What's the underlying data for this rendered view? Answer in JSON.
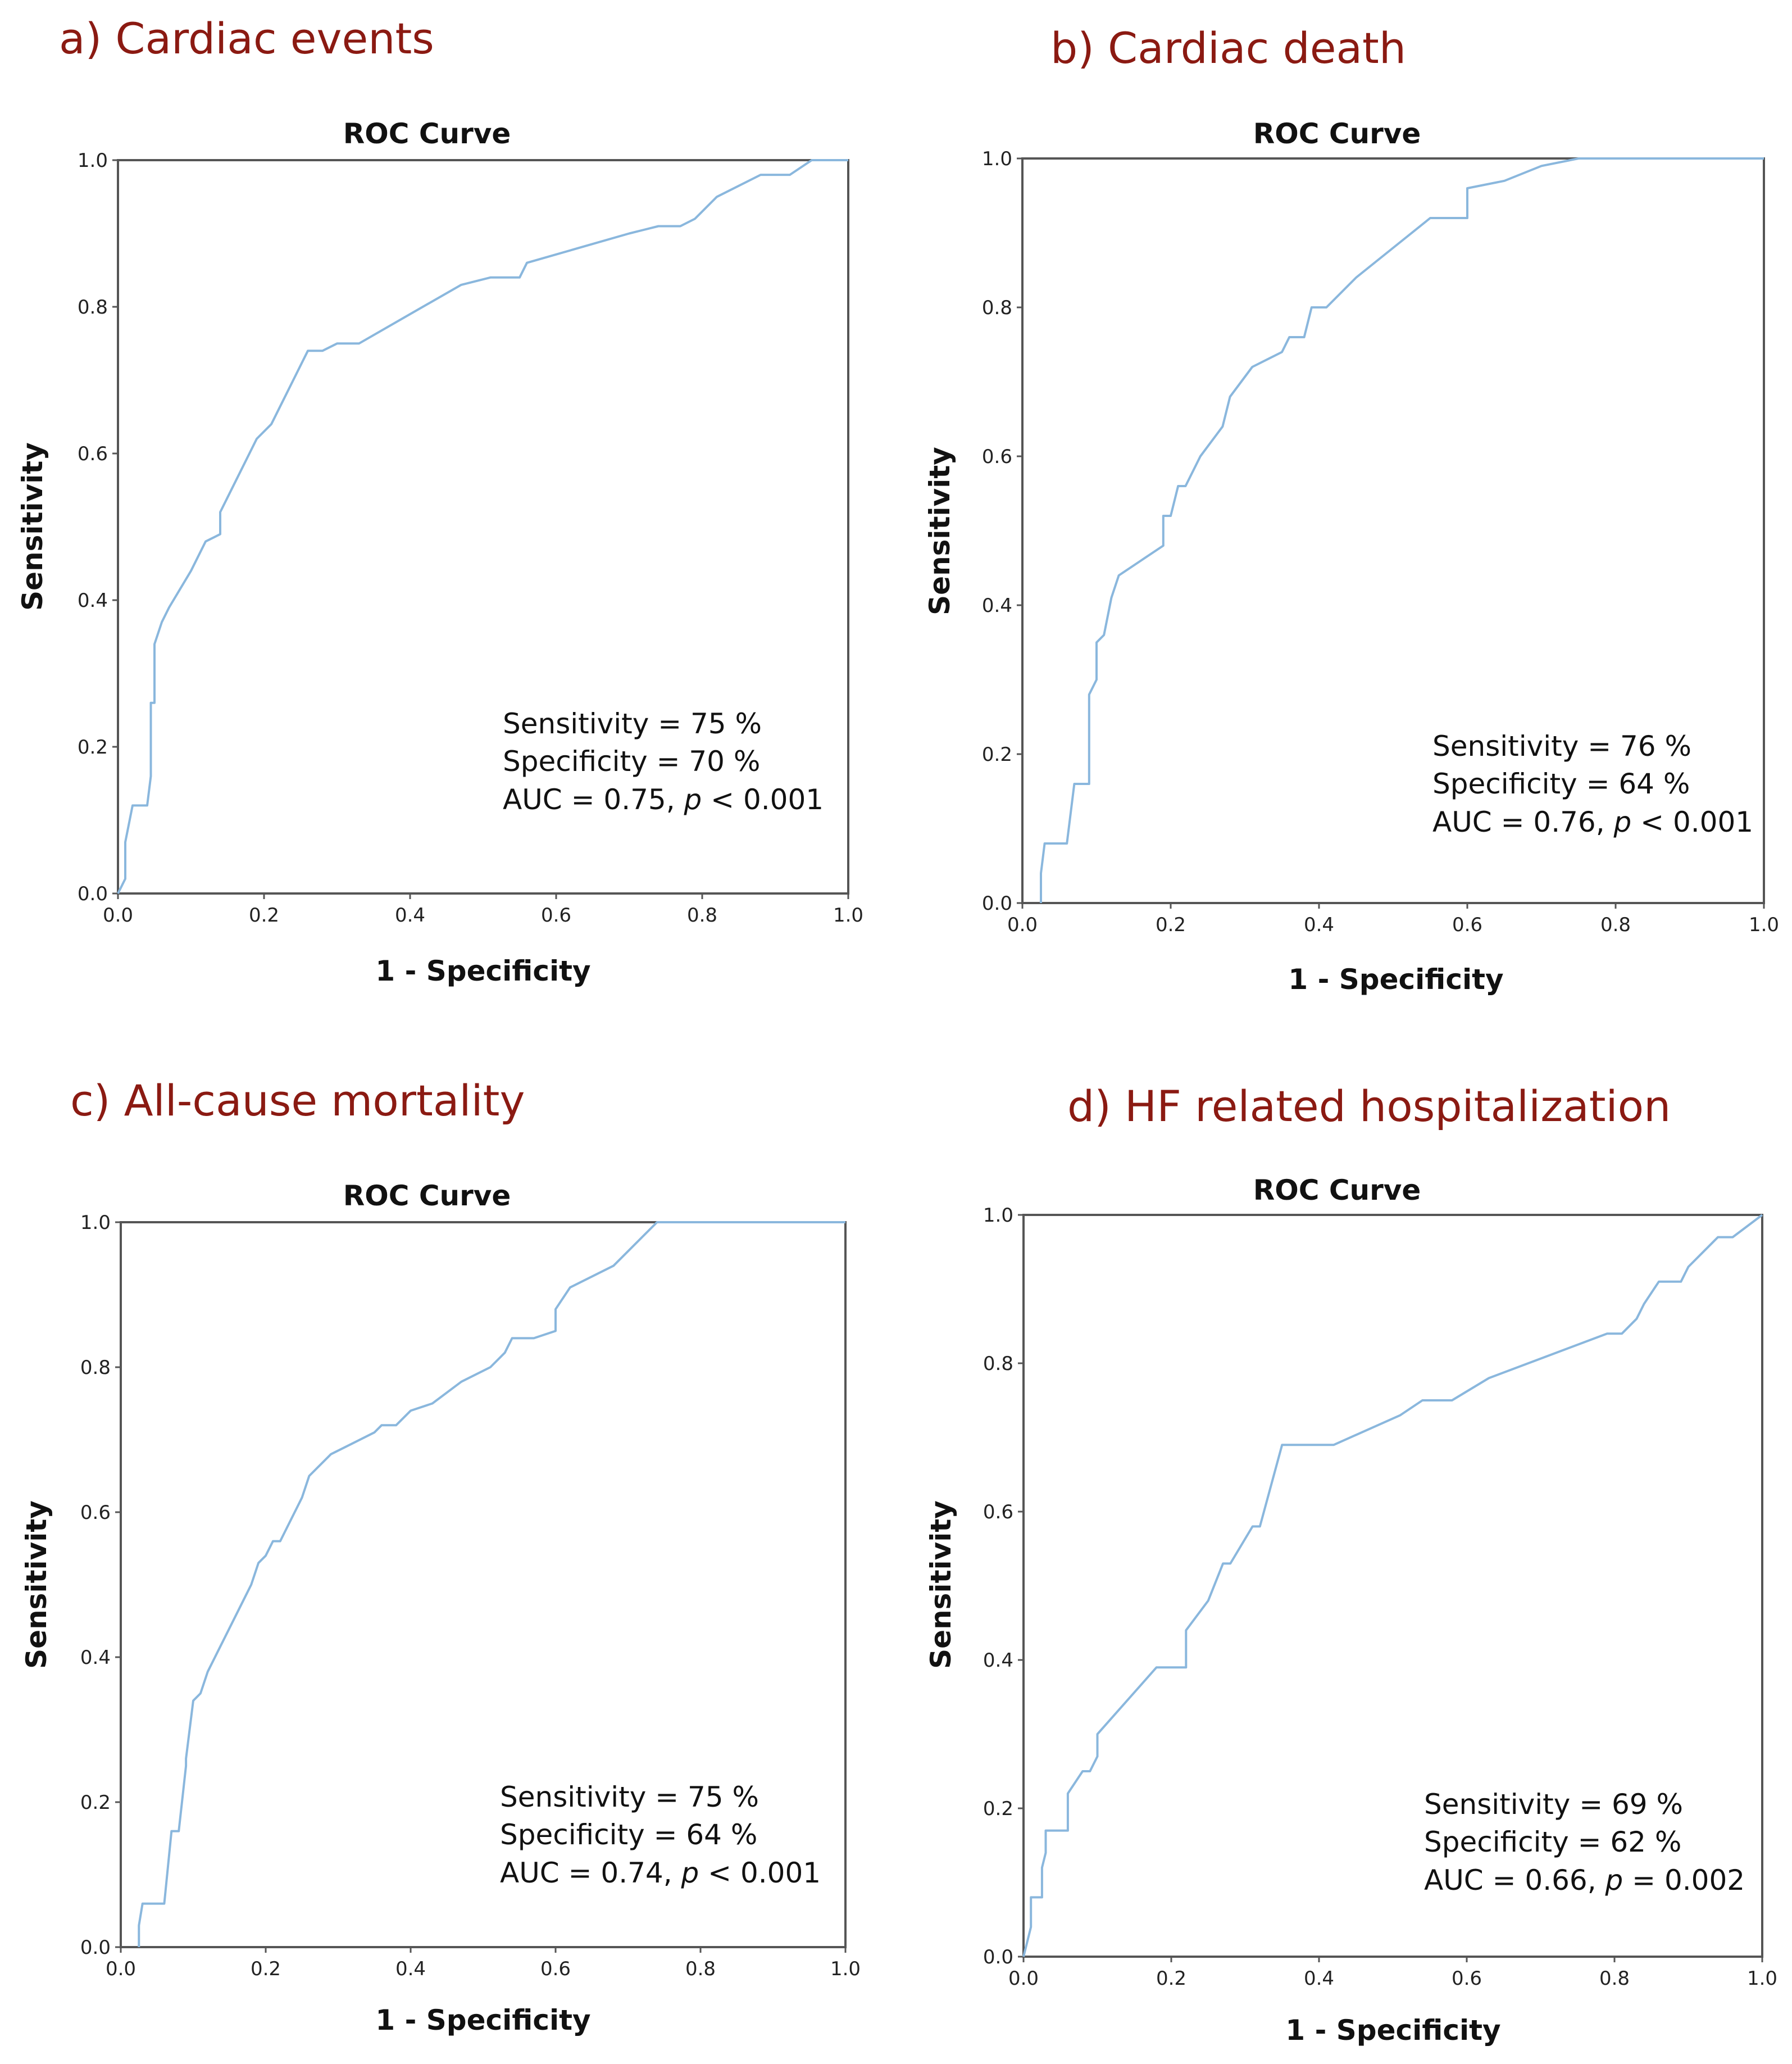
{
  "colors": {
    "title": "#8b1a12",
    "curve": "#8ab7dd",
    "frame": "#555555",
    "text": "#111111"
  },
  "chart_data": [
    {
      "type": "line",
      "panel_title": "a) Cardiac events",
      "title": "ROC Curve",
      "xlabel": "1 - Specificity",
      "ylabel": "Sensitivity",
      "xlim": [
        0,
        1
      ],
      "ylim": [
        0,
        1
      ],
      "xticks": [
        "0.0",
        "0.2",
        "0.4",
        "0.6",
        "0.8",
        "1.0"
      ],
      "yticks": [
        "0.0",
        "0.2",
        "0.4",
        "0.6",
        "0.8",
        "1.0"
      ],
      "series": [
        {
          "name": "ROC",
          "x": [
            0.0,
            0.01,
            0.01,
            0.02,
            0.03,
            0.04,
            0.045,
            0.045,
            0.05,
            0.05,
            0.06,
            0.07,
            0.1,
            0.12,
            0.14,
            0.14,
            0.16,
            0.18,
            0.19,
            0.21,
            0.22,
            0.24,
            0.26,
            0.28,
            0.3,
            0.33,
            0.4,
            0.47,
            0.51,
            0.55,
            0.56,
            0.63,
            0.7,
            0.74,
            0.77,
            0.79,
            0.82,
            0.88,
            0.92,
            0.95,
            1.0
          ],
          "y": [
            0.0,
            0.02,
            0.07,
            0.12,
            0.12,
            0.12,
            0.16,
            0.26,
            0.26,
            0.34,
            0.37,
            0.39,
            0.44,
            0.48,
            0.49,
            0.52,
            0.56,
            0.6,
            0.62,
            0.64,
            0.66,
            0.7,
            0.74,
            0.74,
            0.75,
            0.75,
            0.79,
            0.83,
            0.84,
            0.84,
            0.86,
            0.88,
            0.9,
            0.91,
            0.91,
            0.92,
            0.95,
            0.98,
            0.98,
            1.0,
            1.0
          ]
        }
      ],
      "annotation": {
        "sensitivity": "Sensitivity = 75 %",
        "specificity": "Specificity = 70 %",
        "auc_prefix": "AUC = 0.75, ",
        "p_symbol": "p",
        "p_suffix": " < 0.001"
      }
    },
    {
      "type": "line",
      "panel_title": "b) Cardiac death",
      "title": "ROC Curve",
      "xlabel": "1 - Specificity",
      "ylabel": "Sensitivity",
      "xlim": [
        0,
        1
      ],
      "ylim": [
        0,
        1
      ],
      "xticks": [
        "0.0",
        "0.2",
        "0.4",
        "0.6",
        "0.8",
        "1.0"
      ],
      "yticks": [
        "0.0",
        "0.2",
        "0.4",
        "0.6",
        "0.8",
        "1.0"
      ],
      "series": [
        {
          "name": "ROC",
          "x": [
            0.025,
            0.025,
            0.03,
            0.06,
            0.07,
            0.09,
            0.09,
            0.1,
            0.1,
            0.11,
            0.12,
            0.13,
            0.16,
            0.19,
            0.19,
            0.2,
            0.21,
            0.22,
            0.24,
            0.27,
            0.28,
            0.31,
            0.35,
            0.36,
            0.38,
            0.39,
            0.41,
            0.45,
            0.5,
            0.55,
            0.6,
            0.6,
            0.65,
            0.7,
            0.75,
            1.0
          ],
          "y": [
            0.0,
            0.04,
            0.08,
            0.08,
            0.16,
            0.16,
            0.28,
            0.3,
            0.35,
            0.36,
            0.41,
            0.44,
            0.46,
            0.48,
            0.52,
            0.52,
            0.56,
            0.56,
            0.6,
            0.64,
            0.68,
            0.72,
            0.74,
            0.76,
            0.76,
            0.8,
            0.8,
            0.84,
            0.88,
            0.92,
            0.92,
            0.96,
            0.97,
            0.99,
            1.0,
            1.0
          ]
        }
      ],
      "annotation": {
        "sensitivity": "Sensitivity = 76 %",
        "specificity": "Specificity = 64 %",
        "auc_prefix": "AUC = 0.76, ",
        "p_symbol": "p",
        "p_suffix": " < 0.001"
      }
    },
    {
      "type": "line",
      "panel_title": "c) All-cause mortality",
      "title": "ROC Curve",
      "xlabel": "1 - Specificity",
      "ylabel": "Sensitivity",
      "xlim": [
        0,
        1
      ],
      "ylim": [
        0,
        1
      ],
      "xticks": [
        "0.0",
        "0.2",
        "0.4",
        "0.6",
        "0.8",
        "1.0"
      ],
      "yticks": [
        "0.0",
        "0.2",
        "0.4",
        "0.6",
        "0.8",
        "1.0"
      ],
      "series": [
        {
          "name": "ROC",
          "x": [
            0.025,
            0.025,
            0.03,
            0.06,
            0.07,
            0.08,
            0.09,
            0.09,
            0.1,
            0.11,
            0.12,
            0.13,
            0.14,
            0.17,
            0.18,
            0.19,
            0.2,
            0.21,
            0.22,
            0.25,
            0.26,
            0.29,
            0.31,
            0.35,
            0.36,
            0.38,
            0.4,
            0.43,
            0.47,
            0.51,
            0.53,
            0.54,
            0.57,
            0.6,
            0.6,
            0.62,
            0.68,
            0.74,
            1.0
          ],
          "y": [
            0.0,
            0.03,
            0.06,
            0.06,
            0.16,
            0.16,
            0.25,
            0.26,
            0.34,
            0.35,
            0.38,
            0.4,
            0.42,
            0.48,
            0.5,
            0.53,
            0.54,
            0.56,
            0.56,
            0.62,
            0.65,
            0.68,
            0.69,
            0.71,
            0.72,
            0.72,
            0.74,
            0.75,
            0.78,
            0.8,
            0.82,
            0.84,
            0.84,
            0.85,
            0.88,
            0.91,
            0.94,
            1.0,
            1.0
          ]
        }
      ],
      "annotation": {
        "sensitivity": "Sensitivity = 75 %",
        "specificity": "Specificity = 64 %",
        "auc_prefix": "AUC = 0.74, ",
        "p_symbol": "p",
        "p_suffix": " < 0.001"
      }
    },
    {
      "type": "line",
      "panel_title": "d) HF related hospitalization",
      "title": "ROC Curve",
      "xlabel": "1 - Specificity",
      "ylabel": "Sensitivity",
      "xlim": [
        0,
        1
      ],
      "ylim": [
        0,
        1
      ],
      "xticks": [
        "0.0",
        "0.2",
        "0.4",
        "0.6",
        "0.8",
        "1.0"
      ],
      "yticks": [
        "0.0",
        "0.2",
        "0.4",
        "0.6",
        "0.8",
        "1.0"
      ],
      "series": [
        {
          "name": "ROC",
          "x": [
            0.0,
            0.005,
            0.01,
            0.01,
            0.025,
            0.025,
            0.03,
            0.03,
            0.06,
            0.06,
            0.08,
            0.09,
            0.1,
            0.1,
            0.18,
            0.22,
            0.22,
            0.25,
            0.27,
            0.28,
            0.31,
            0.32,
            0.35,
            0.42,
            0.51,
            0.54,
            0.58,
            0.63,
            0.79,
            0.81,
            0.83,
            0.84,
            0.86,
            0.89,
            0.9,
            0.94,
            0.96,
            1.0
          ],
          "y": [
            0.0,
            0.02,
            0.04,
            0.08,
            0.08,
            0.12,
            0.14,
            0.17,
            0.17,
            0.22,
            0.25,
            0.25,
            0.27,
            0.3,
            0.39,
            0.39,
            0.44,
            0.48,
            0.53,
            0.53,
            0.58,
            0.58,
            0.69,
            0.69,
            0.73,
            0.75,
            0.75,
            0.78,
            0.84,
            0.84,
            0.86,
            0.88,
            0.91,
            0.91,
            0.93,
            0.97,
            0.97,
            1.0
          ]
        }
      ],
      "annotation": {
        "sensitivity": "Sensitivity = 69 %",
        "specificity": "Specificity = 62 %",
        "auc_prefix": "AUC = 0.66, ",
        "p_symbol": "p",
        "p_suffix": " = 0.002"
      }
    }
  ]
}
